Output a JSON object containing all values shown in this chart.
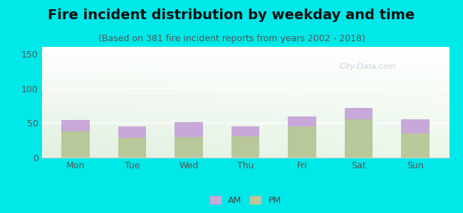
{
  "title": "Fire incident distribution by weekday and time",
  "subtitle": "(Based on 381 fire incident reports from years 2002 - 2018)",
  "days": [
    "Mon",
    "Tue",
    "Wed",
    "Thu",
    "Fri",
    "Sat",
    "Sun"
  ],
  "pm_values": [
    38,
    29,
    30,
    31,
    45,
    55,
    35
  ],
  "am_values": [
    16,
    16,
    21,
    14,
    14,
    17,
    20
  ],
  "am_color": "#c8a8d8",
  "pm_color": "#b8c89a",
  "ylim": [
    0,
    160
  ],
  "yticks": [
    0,
    50,
    100,
    150
  ],
  "background_color": "#00e8e8",
  "title_fontsize": 14,
  "subtitle_fontsize": 9,
  "tick_fontsize": 9,
  "legend_fontsize": 9,
  "watermark": "Ⓠ City  Data.com"
}
